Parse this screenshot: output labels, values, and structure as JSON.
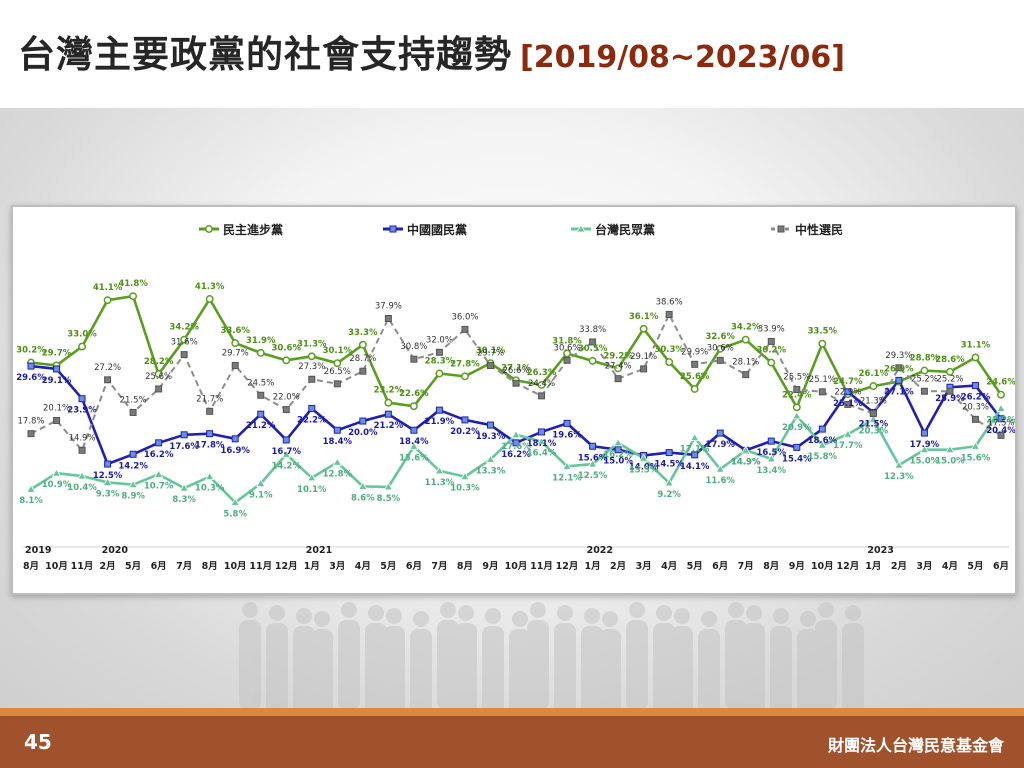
{
  "slide": {
    "title": "台灣主要政黨的社會支持趨勢",
    "date_range": "[2019/08~2023/06]",
    "page_number": "45",
    "organization": "財團法人台灣民意基金會"
  },
  "chart_data": {
    "type": "line",
    "title": "",
    "xlabel": "",
    "ylabel": "",
    "ylim": [
      0,
      45
    ],
    "grid": false,
    "legend_position": "top",
    "years": [
      {
        "label": "2019",
        "index": 0
      },
      {
        "label": "2020",
        "index": 3
      },
      {
        "label": "2021",
        "index": 11
      },
      {
        "label": "2022",
        "index": 22
      },
      {
        "label": "2023",
        "index": 33
      }
    ],
    "categories": [
      "8月",
      "10月",
      "11月",
      "2月",
      "5月",
      "6月",
      "7月",
      "8月",
      "10月",
      "11月",
      "12月",
      "1月",
      "3月",
      "4月",
      "5月",
      "6月",
      "7月",
      "8月",
      "9月",
      "10月",
      "11月",
      "12月",
      "1月",
      "2月",
      "3月",
      "4月",
      "5月",
      "6月",
      "7月",
      "8月",
      "9月",
      "10月",
      "12月",
      "1月",
      "2月",
      "3月",
      "4月",
      "5月",
      "6月"
    ],
    "series": [
      {
        "name": "民主進步黨",
        "color": "#5a9e1f",
        "marker": "circle",
        "values": [
          30.2,
          29.7,
          33.0,
          41.1,
          41.8,
          28.2,
          34.2,
          41.3,
          33.6,
          31.9,
          30.6,
          31.3,
          30.1,
          33.3,
          23.2,
          22.6,
          28.3,
          27.8,
          30.1,
          27.1,
          26.3,
          31.8,
          30.5,
          29.2,
          36.1,
          30.3,
          25.6,
          32.6,
          34.2,
          30.2,
          22.4,
          33.5,
          24.7,
          26.1,
          26.9,
          28.8,
          28.6,
          31.1,
          24.6
        ]
      },
      {
        "name": "中國國民黨",
        "color": "#1f1fb4",
        "marker": "square",
        "values": [
          29.6,
          29.1,
          23.9,
          12.5,
          14.2,
          16.2,
          17.6,
          17.8,
          16.9,
          21.2,
          16.7,
          22.2,
          18.4,
          20.0,
          21.2,
          18.4,
          21.9,
          20.2,
          19.3,
          16.2,
          18.1,
          19.6,
          15.6,
          15.0,
          14.0,
          14.5,
          14.1,
          17.9,
          14.9,
          16.5,
          15.4,
          18.6,
          25.1,
          21.5,
          27.1,
          17.9,
          25.9,
          26.2,
          20.4
        ]
      },
      {
        "name": "台灣民眾黨",
        "color": "#66c59a",
        "marker": "triangle",
        "values": [
          8.1,
          10.9,
          10.4,
          9.3,
          8.9,
          10.7,
          8.3,
          10.3,
          5.8,
          9.1,
          14.2,
          10.1,
          12.8,
          8.6,
          8.5,
          15.6,
          11.3,
          10.3,
          13.3,
          17.6,
          16.4,
          12.1,
          12.5,
          16.2,
          13.5,
          9.2,
          17.1,
          11.6,
          14.9,
          13.4,
          20.9,
          15.8,
          17.7,
          20.3,
          12.3,
          15.0,
          15.0,
          15.6,
          22.2
        ]
      },
      {
        "name": "中性選民",
        "color": "#8c8c8c",
        "marker": "square",
        "dashed": true,
        "values": [
          17.8,
          20.1,
          14.9,
          27.2,
          21.5,
          25.6,
          31.6,
          21.7,
          29.7,
          24.5,
          22.0,
          27.3,
          26.5,
          28.7,
          37.9,
          30.8,
          32.0,
          36.0,
          29.7,
          26.6,
          24.4,
          30.6,
          33.8,
          27.4,
          29.1,
          38.6,
          29.9,
          30.6,
          28.1,
          33.9,
          25.5,
          25.1,
          22.9,
          21.3,
          29.3,
          25.2,
          25.2,
          20.3,
          17.5
        ]
      }
    ]
  }
}
